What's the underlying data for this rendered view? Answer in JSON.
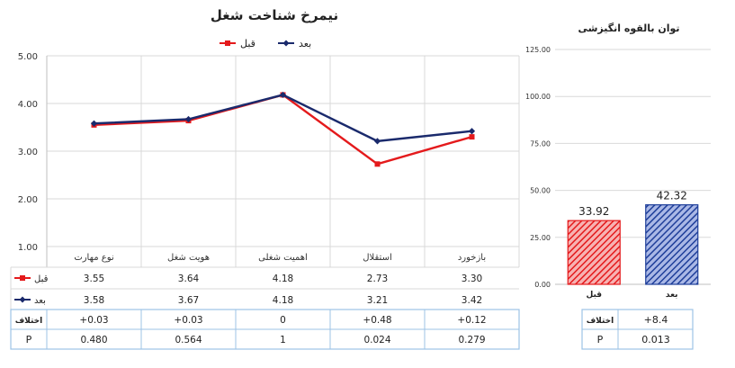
{
  "chart_data": [
    {
      "type": "line",
      "title": "نیمرخ شناخت شغل",
      "categories": [
        "نوع مهارت",
        "هویت شغل",
        "اهمیت شغلی",
        "استقلال",
        "بازخورد"
      ],
      "ylim": [
        1,
        5
      ],
      "yticks": [
        "1.00",
        "2.00",
        "3.00",
        "4.00",
        "5.00"
      ],
      "grid": true,
      "legend_position": "top",
      "series": [
        {
          "name": "قبل",
          "color": "#e41a1c",
          "marker": "square",
          "values": [
            3.55,
            3.64,
            4.18,
            2.73,
            3.3
          ],
          "labels": [
            "3.55",
            "3.64",
            "4.18",
            "2.73",
            "3.30"
          ]
        },
        {
          "name": "بعد",
          "color": "#1a2a6c",
          "marker": "diamond",
          "values": [
            3.58,
            3.67,
            4.18,
            3.21,
            3.42
          ],
          "labels": [
            "3.58",
            "3.67",
            "4.18",
            "3.21",
            "3.42"
          ]
        }
      ],
      "stats_table": {
        "diff_label": "اختلاف",
        "diff": [
          "+0.03",
          "+0.03",
          "0",
          "+0.48",
          "+0.12"
        ],
        "p_label": "P",
        "p": [
          "0.480",
          "0.564",
          "1",
          "0.024",
          "0.279"
        ]
      }
    },
    {
      "type": "bar",
      "title": "توان بالقوه انگیزشی",
      "categories": [
        "قبل",
        "بعد"
      ],
      "values": [
        33.92,
        42.32
      ],
      "value_labels": [
        "33.92",
        "42.32"
      ],
      "colors": [
        "#e41a1c",
        "#1f3f9a"
      ],
      "ylim": [
        0,
        125
      ],
      "yticks": [
        "0.00",
        "25.00",
        "50.00",
        "75.00",
        "100.00",
        "125.00"
      ],
      "grid": true,
      "stats_table": {
        "diff_label": "اختلاف",
        "diff": "+8.4",
        "p_label": "P",
        "p": "0.013"
      }
    }
  ]
}
